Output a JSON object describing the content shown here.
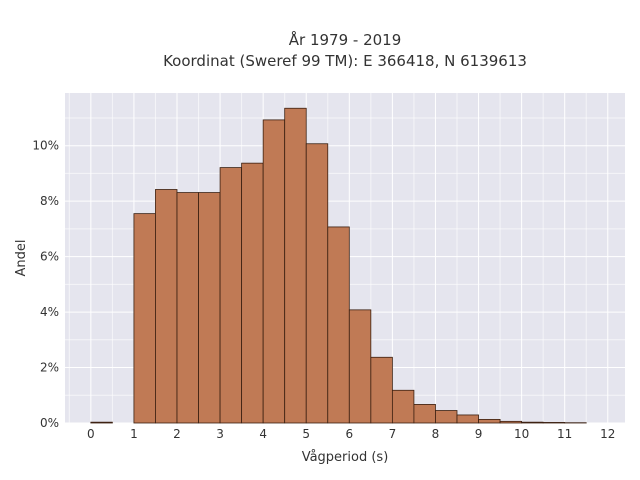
{
  "chart_data": {
    "type": "bar",
    "title": "År 1979 - 2019",
    "subtitle": "Koordinat (Sweref 99 TM): E 366418, N 6139613",
    "xlabel": "Vågperiod (s)",
    "ylabel": "Andel",
    "bin_width": 0.5,
    "bins_start": [
      0,
      0.5,
      1,
      1.5,
      2,
      2.5,
      3,
      3.5,
      4,
      4.5,
      5,
      5.5,
      6,
      6.5,
      7,
      7.5,
      8,
      8.5,
      9,
      9.5,
      10,
      10.5,
      11,
      11.5
    ],
    "values": [
      0.0003,
      0,
      0.0755,
      0.0842,
      0.0831,
      0.0831,
      0.0921,
      0.0937,
      0.1093,
      0.1135,
      0.1007,
      0.0707,
      0.0408,
      0.0237,
      0.0118,
      0.0067,
      0.0045,
      0.0029,
      0.0013,
      0.0006,
      0.0003,
      0.0002,
      0.0001,
      0
    ],
    "xlim": [
      -0.6,
      12.4
    ],
    "ylim": [
      0,
      0.119
    ],
    "x_ticks": [
      0,
      1,
      2,
      3,
      4,
      5,
      6,
      7,
      8,
      9,
      10,
      11,
      12
    ],
    "y_ticks": [
      0,
      0.02,
      0.04,
      0.06,
      0.08,
      0.1
    ],
    "y_tick_labels": [
      "0%",
      "2%",
      "4%",
      "6%",
      "8%",
      "10%"
    ],
    "grid": true,
    "colors": {
      "bar": "#c07a55",
      "bar_edge": "#3a1f10",
      "plot_bg": "#e5e5ee",
      "grid": "#ffffff"
    }
  }
}
